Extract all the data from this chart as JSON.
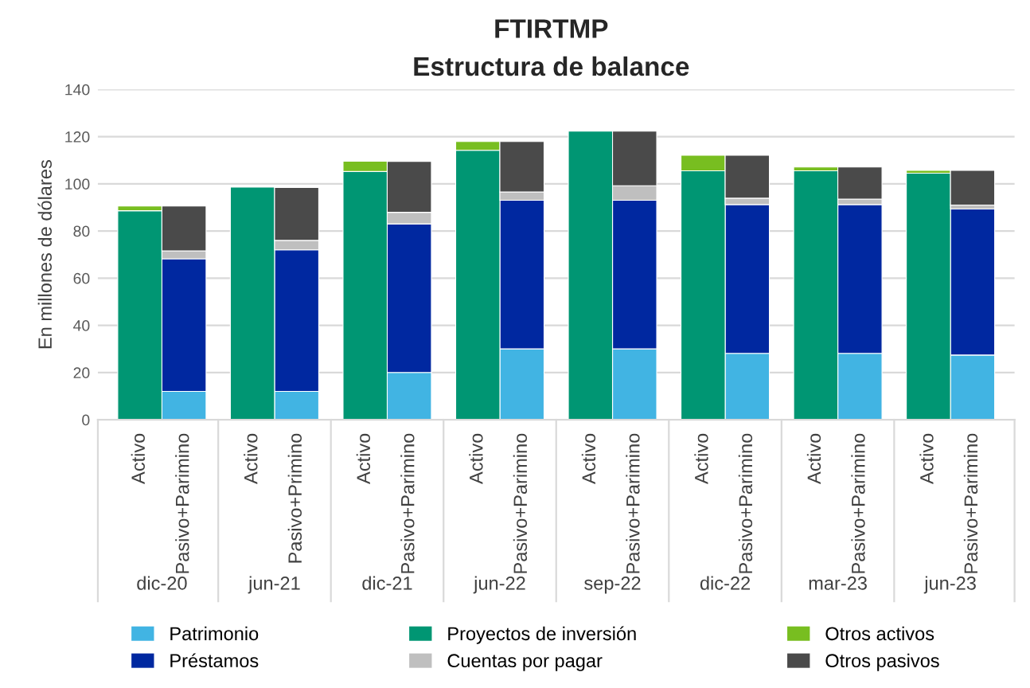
{
  "chart_data": {
    "type": "bar",
    "title": "FTIRTMP",
    "subtitle": "Estructura de balance",
    "ylabel": "En millones de dólares",
    "categories": [
      "Activo",
      "Pasivo+Parimino",
      "Activo",
      "Pasivo+Primino",
      "Activo",
      "Pasivo+Parimino",
      "Activo",
      "Pasivo+Parimino",
      "Activo",
      "Pasivo+Parimino",
      "Activo",
      "Pasivo+Parimino",
      "Activo",
      "Pasivo+Parimino",
      "Activo",
      "Pasivo+Parimino"
    ],
    "annotations": [
      "dic-20",
      "jun-21",
      "dic-21",
      "jun-22",
      "sep-22",
      "dic-22",
      "mar-23",
      "jun-23"
    ],
    "stacked": true,
    "ylim": [
      0,
      140
    ],
    "yticks": [
      0,
      20,
      40,
      60,
      80,
      100,
      120,
      140
    ],
    "grid": "y",
    "legend": "bottom",
    "series": [
      {
        "name": "Patrimonio",
        "color": "#41b4e3",
        "values": [
          null,
          12,
          null,
          12,
          null,
          20,
          null,
          30,
          null,
          30,
          null,
          28.1,
          null,
          28.1,
          null,
          27.4
        ]
      },
      {
        "name": "Préstamos",
        "color": "#0028a0",
        "values": [
          null,
          56.2,
          null,
          60,
          null,
          63,
          null,
          63,
          null,
          63,
          null,
          63.1,
          null,
          63.1,
          null,
          61.9
        ]
      },
      {
        "name": "Proyectos de inversión",
        "color": "#009673",
        "values": [
          88.6,
          null,
          98.6,
          null,
          105.2,
          null,
          114.2,
          null,
          122.3,
          null,
          105.5,
          null,
          105.5,
          null,
          104.5,
          null
        ]
      },
      {
        "name": "Cuentas por pagar",
        "color": "#bfbfbf",
        "values": [
          null,
          3.4,
          null,
          4,
          null,
          4.9,
          null,
          3.5,
          null,
          6.2,
          null,
          2.7,
          null,
          2.3,
          null,
          1.7
        ]
      },
      {
        "name": "Otros activos",
        "color": "#78be20",
        "values": [
          2,
          null,
          null,
          null,
          4.4,
          null,
          3.7,
          null,
          null,
          null,
          6.6,
          null,
          1.6,
          null,
          1.2,
          null
        ]
      },
      {
        "name": "Otros pasivos",
        "color": "#4a4a4a",
        "values": [
          null,
          19,
          null,
          22.4,
          null,
          21.6,
          null,
          21.4,
          null,
          23.1,
          null,
          18.2,
          null,
          13.6,
          null,
          14.7
        ]
      }
    ]
  }
}
